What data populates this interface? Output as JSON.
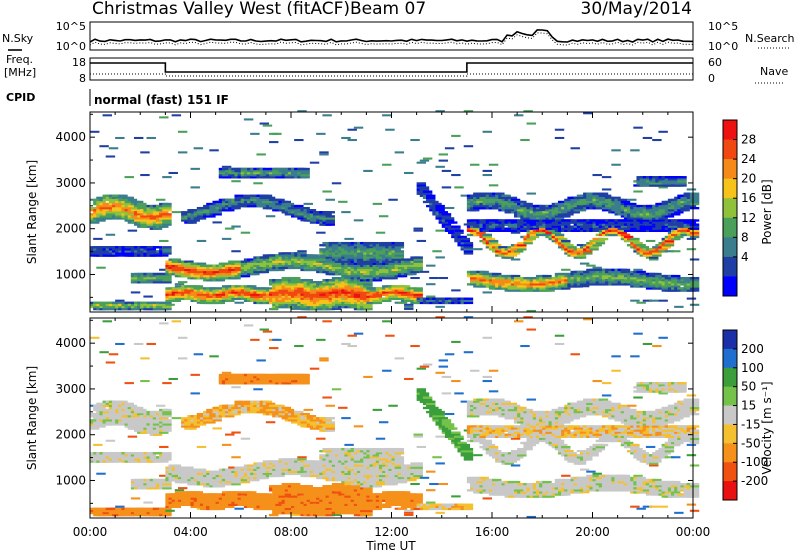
{
  "header": {
    "title": "Christmas Valley West (fitACF)",
    "beam": "Beam 07",
    "date": "30/May/2014"
  },
  "side_labels": {
    "nsky": "N.Sky",
    "nsearch": "N.Search",
    "freq_line1": "Freq.",
    "freq_line2": "[MHz]",
    "nave": "Nave",
    "cpid": "CPID",
    "cpid_value": "normal (fast) 151 IF"
  },
  "mini_axes": {
    "noise_ticks": [
      "10^5",
      "10^0"
    ],
    "freq_ticks": [
      "18",
      "8"
    ],
    "nave_ticks": [
      "60",
      "0"
    ]
  },
  "colors": {
    "power": [
      "#0000ff",
      "#1f3fa5",
      "#3a7d8c",
      "#4aa05a",
      "#8fc23a",
      "#f7c21a",
      "#f58a18",
      "#f04810",
      "#ee1111"
    ],
    "velocity": [
      "#1a2fa8",
      "#1f6fd0",
      "#3a9e3a",
      "#74c24a",
      "#c8c8c8",
      "#f5c030",
      "#f5901a",
      "#f05010",
      "#e81010"
    ]
  },
  "chart_data": [
    {
      "type": "heatmap",
      "name": "power",
      "ylabel": "Slant Range [km]",
      "y_ticks": [
        1000,
        2000,
        3000,
        4000
      ],
      "ylim": [
        180,
        4550
      ],
      "x_ticks": [
        "00:00",
        "04:00",
        "08:00",
        "12:00",
        "16:00",
        "20:00",
        "00:00"
      ],
      "xlim_hours": [
        0,
        24
      ],
      "colorbar": {
        "label": "Power [dB]",
        "ticks": [
          "28",
          "24",
          "20",
          "16",
          "12",
          "8",
          "4"
        ],
        "range": [
          0,
          30
        ]
      }
    },
    {
      "type": "heatmap",
      "name": "velocity",
      "ylabel": "Slant Range [km]",
      "y_ticks": [
        1000,
        2000,
        3000,
        4000
      ],
      "ylim": [
        180,
        4550
      ],
      "x_ticks": [
        "00:00",
        "04:00",
        "08:00",
        "12:00",
        "16:00",
        "20:00",
        "00:00"
      ],
      "xlim_hours": [
        0,
        24
      ],
      "xlabel": "Time UT",
      "colorbar": {
        "label": "Velocity [m s⁻¹]",
        "ticks": [
          "200",
          "100",
          "50",
          "15",
          "-15",
          "-50",
          "-100",
          "-200"
        ],
        "range": [
          -250,
          250
        ]
      }
    }
  ]
}
